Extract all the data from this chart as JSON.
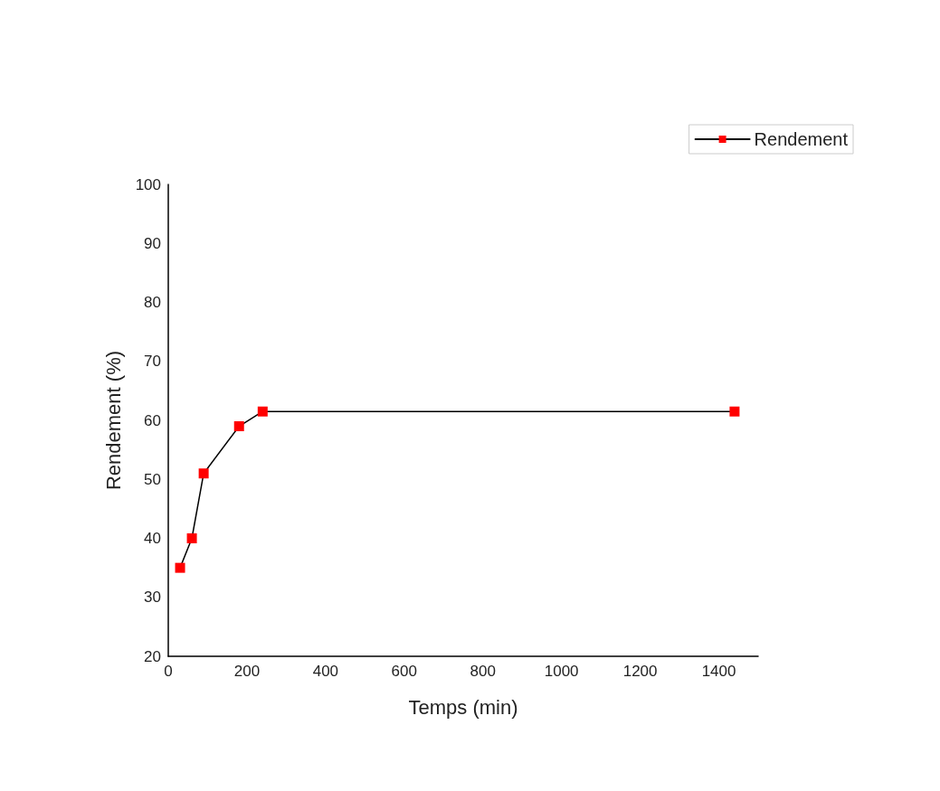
{
  "chart_data": {
    "type": "line",
    "xlabel": "Temps (min)",
    "ylabel": "Rendement (%)",
    "x": [
      30,
      60,
      90,
      180,
      240,
      1440
    ],
    "series": [
      {
        "name": "Rendement",
        "color": "#ff0000",
        "values": [
          35,
          40,
          51,
          59,
          61.5,
          61.5
        ]
      }
    ],
    "xlim": [
      0,
      1500
    ],
    "xticks": [
      0,
      200,
      400,
      600,
      800,
      1000,
      1200,
      1400
    ],
    "ylim": [
      20,
      100
    ],
    "yticks": [
      20,
      30,
      40,
      50,
      60,
      70,
      80,
      90,
      100
    ],
    "grid": false,
    "legend": "top right",
    "marker": "square",
    "line_style": "solid"
  }
}
